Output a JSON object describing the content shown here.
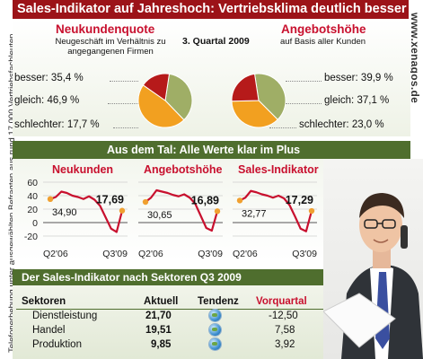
{
  "title": "Sales-Indikator auf Jahreshoch: Vertriebsklima deutlich besser",
  "quarter_label": "3. Quartal 2009",
  "source_note": "Telefonerhebung unter ausgewählten Befragten aus rund 17.000 Vertriebsfachleuten",
  "website": "www.xenagos.de",
  "band_title": "Aus dem Tal: Alle Werte klar im Plus",
  "table_title": "Der Sales-Indikator nach Sektoren Q3 2009",
  "colors": {
    "title_bg": "#9c1318",
    "band_bg": "#4f6e2e",
    "accent_red": "#c8102e",
    "pie_besser": "#9fae66",
    "pie_gleich": "#f2a020",
    "pie_schlechter": "#b61a1a",
    "line": "#c8102e",
    "marker": "#f0a030"
  },
  "chart_data": [
    {
      "type": "pie",
      "title": "Neukundenquote",
      "subtitle": "Neugeschäft im Verhältnis zu angegangenen Firmen",
      "slices": [
        {
          "label": "besser:",
          "value": 35.4,
          "display": "35,4 %",
          "color": "#9fae66"
        },
        {
          "label": "gleich:",
          "value": 46.9,
          "display": "46,9 %",
          "color": "#f2a020"
        },
        {
          "label": "schlechter:",
          "value": 17.7,
          "display": "17,7 %",
          "color": "#b61a1a"
        }
      ]
    },
    {
      "type": "pie",
      "title": "Angebotshöhe",
      "subtitle": "auf Basis aller Kunden",
      "slices": [
        {
          "label": "besser:",
          "value": 39.9,
          "display": "39,9 %",
          "color": "#9fae66"
        },
        {
          "label": "gleich:",
          "value": 37.1,
          "display": "37,1 %",
          "color": "#f2a020"
        },
        {
          "label": "schlechter:",
          "value": 23.0,
          "display": "23,0 %",
          "color": "#b61a1a"
        }
      ]
    },
    {
      "type": "line",
      "title": "Neukunden",
      "x_start_label": "Q2'06",
      "x_end_label": "Q3'09",
      "start_label": "34,90",
      "end_label": "17,69",
      "values": [
        34.9,
        38,
        46,
        44,
        40,
        38,
        35,
        39,
        34,
        25,
        8,
        -9,
        -14,
        17.69
      ],
      "ylim": [
        -20,
        60
      ],
      "yticks": [
        60,
        40,
        20,
        0,
        -20
      ]
    },
    {
      "type": "line",
      "title": "Angebotshöhe",
      "x_start_label": "Q2'06",
      "x_end_label": "Q3'09",
      "start_label": "30,65",
      "end_label": "16,89",
      "values": [
        30.65,
        37,
        48,
        46,
        44,
        41,
        39,
        42,
        37,
        28,
        10,
        -8,
        -12,
        16.89
      ],
      "ylim": [
        -20,
        60
      ],
      "yticks": [
        60,
        40,
        20,
        0,
        -20
      ]
    },
    {
      "type": "line",
      "title": "Sales-Indikator",
      "x_start_label": "Q2'06",
      "x_end_label": "Q3'09",
      "start_label": "32,77",
      "end_label": "17,29",
      "values": [
        32.77,
        37,
        47,
        45,
        42,
        40,
        37,
        40,
        36,
        26,
        9,
        -9,
        -13,
        17.29
      ],
      "ylim": [
        -20,
        60
      ],
      "yticks": [
        60,
        40,
        20,
        0,
        -20
      ]
    }
  ],
  "table": {
    "headers": {
      "sector": "Sektoren",
      "current": "Aktuell",
      "trend": "Tendenz",
      "previous": "Vorquartal"
    },
    "rows": [
      {
        "sector": "Dienstleistung",
        "current": "21,70",
        "previous": "-12,50",
        "trend_icon": "globe-icon"
      },
      {
        "sector": "Handel",
        "current": "19,51",
        "previous": "7,58",
        "trend_icon": "globe-icon"
      },
      {
        "sector": "Produktion",
        "current": "9,85",
        "previous": "3,92",
        "trend_icon": "globe-icon"
      }
    ]
  }
}
